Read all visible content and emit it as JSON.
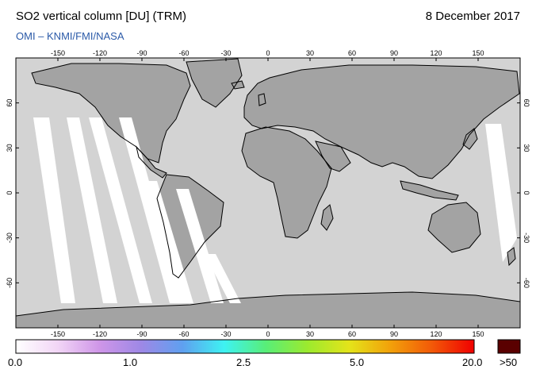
{
  "header": {
    "title": "SO2 vertical column [DU] (TRM)",
    "date": "8 December 2017",
    "credit": "OMI  –  KNMI/FMI/NASA"
  },
  "map": {
    "projection": "equirectangular",
    "lon_ticks": [
      "-150",
      "-120",
      "-90",
      "-60",
      "-30",
      "0",
      "30",
      "60",
      "90",
      "120",
      "150"
    ],
    "lat_ticks": [
      "60",
      "30",
      "0",
      "-30",
      "-60"
    ],
    "colors": {
      "ocean": "#d3d3d3",
      "land": "#a3a3a3",
      "coast": "#000000",
      "data_gap": "#ffffff"
    }
  },
  "legend": {
    "labels": [
      "0.0",
      "1.0",
      "2.5",
      "5.0",
      "20.0"
    ],
    "overflow_label": ">50",
    "overflow_color": "#5a0000",
    "gradient": [
      "#ffffff",
      "#f2d6f6",
      "#cf96e8",
      "#9e88e6",
      "#5fa0f0",
      "#3ef2f2",
      "#58ee78",
      "#9cea2e",
      "#e4e41a",
      "#f2a00a",
      "#f25808",
      "#f00000"
    ]
  }
}
